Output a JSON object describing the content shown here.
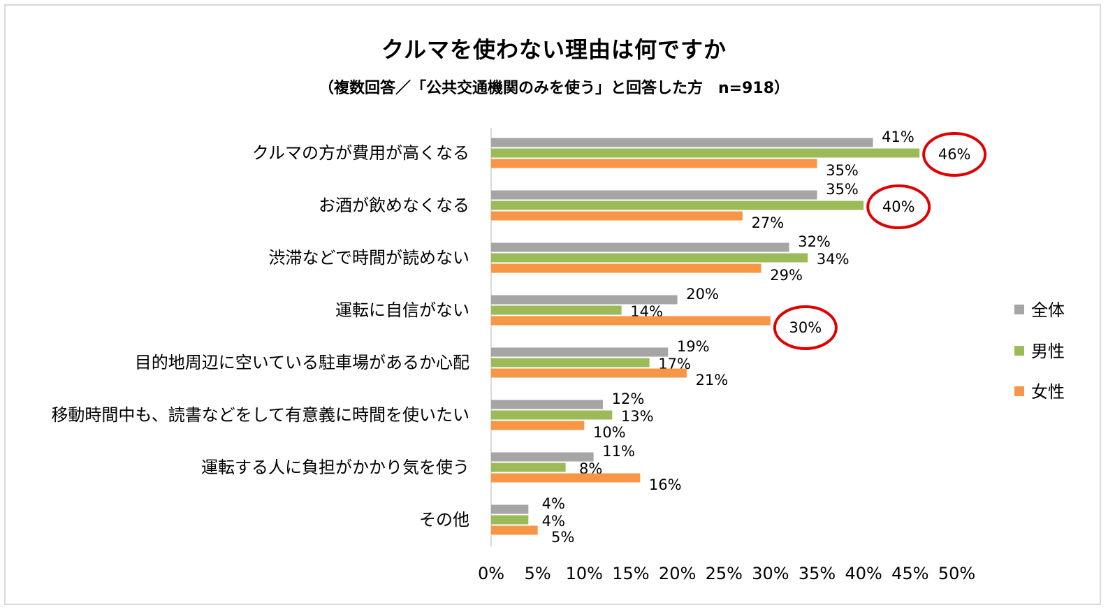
{
  "chart_data": {
    "type": "bar",
    "orientation": "horizontal",
    "title": "クルマを使わない理由は何ですか",
    "subtitle": "（複数回答／「公共交通機関のみを使う」と回答した方　n=918）",
    "categories": [
      "クルマの方が費用が高くなる",
      "お酒が飲めなくなる",
      "渋滞などで時間が読めない",
      "運転に自信がない",
      "目的地周辺に空いている駐車場があるか心配",
      "移動時間中も、読書などをして有意義に時間を使いたい",
      "運転する人に負担がかかり気を使う",
      "その他"
    ],
    "series": [
      {
        "name": "全体",
        "color": "#a5a5a5",
        "values": [
          41,
          35,
          32,
          20,
          19,
          12,
          11,
          4
        ]
      },
      {
        "name": "男性",
        "color": "#9bbb59",
        "values": [
          46,
          40,
          34,
          14,
          17,
          13,
          8,
          4
        ]
      },
      {
        "name": "女性",
        "color": "#f79646",
        "values": [
          35,
          27,
          29,
          30,
          21,
          10,
          16,
          5
        ]
      }
    ],
    "value_suffix": "%",
    "x_ticks": [
      "0%",
      "5%",
      "10%",
      "15%",
      "20%",
      "25%",
      "30%",
      "35%",
      "40%",
      "45%",
      "50%"
    ],
    "xlim": [
      0,
      50
    ],
    "grid": false,
    "legend_position": "right",
    "highlighted": [
      {
        "category_index": 0,
        "series_index": 1
      },
      {
        "category_index": 1,
        "series_index": 1
      },
      {
        "category_index": 3,
        "series_index": 2
      }
    ],
    "highlight_color": "#e00000"
  }
}
